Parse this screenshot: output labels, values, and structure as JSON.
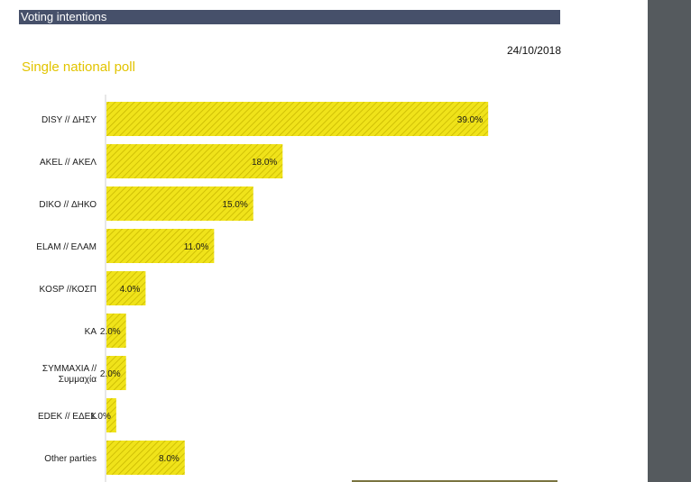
{
  "header": {
    "title": "Voting intentions"
  },
  "date": "24/10/2018",
  "subtitle": "Single national poll",
  "colors": {
    "bar_fill": "#f0e31a",
    "bar_hatch": "#c9b800",
    "header_bg": "#46506a",
    "subtitle": "#e2c400"
  },
  "chart_data": {
    "type": "bar",
    "orientation": "horizontal",
    "categories": [
      [
        "DISY // ΔΗΣΥ"
      ],
      [
        "AKEL // ΑΚΕΛ"
      ],
      [
        "DIKO // ΔΗΚΟ"
      ],
      [
        "ELAM // ΕΛΑΜ"
      ],
      [
        "KOSP //ΚΟΣΠ"
      ],
      [
        "ΚΑ"
      ],
      [
        "ΣΥΜΜΑΧΙΑ //",
        "Συμμαχία"
      ],
      [
        "EDEK // ΕΔΕΚ"
      ],
      [
        "Other parties"
      ]
    ],
    "values": [
      39.0,
      18.0,
      15.0,
      11.0,
      4.0,
      2.0,
      2.0,
      1.0,
      8.0
    ],
    "value_labels": [
      "39.0%",
      "18.0%",
      "15.0%",
      "11.0%",
      "4.0%",
      "2.0%",
      "2.0%",
      "1.0%",
      "8.0%"
    ],
    "xlim": [
      0,
      40
    ],
    "grid": false,
    "legend": "none"
  }
}
